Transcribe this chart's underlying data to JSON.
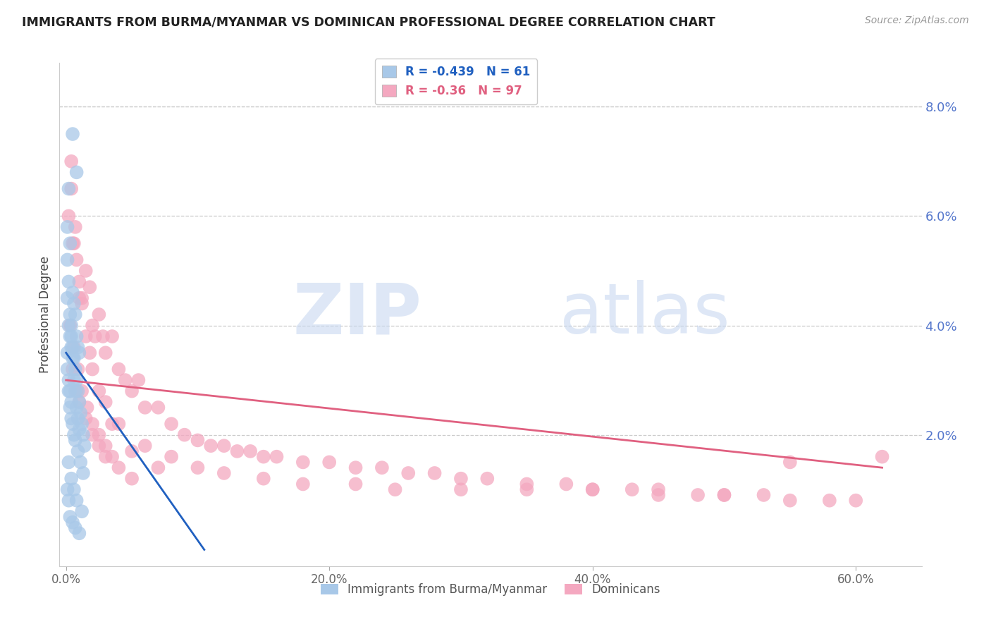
{
  "title": "IMMIGRANTS FROM BURMA/MYANMAR VS DOMINICAN PROFESSIONAL DEGREE CORRELATION CHART",
  "source": "Source: ZipAtlas.com",
  "xlabel_ticks": [
    "0.0%",
    "20.0%",
    "40.0%",
    "60.0%"
  ],
  "xlabel_vals": [
    0.0,
    0.2,
    0.4,
    0.6
  ],
  "ylabel_ticks": [
    "2.0%",
    "4.0%",
    "6.0%",
    "8.0%"
  ],
  "ylabel_vals": [
    0.02,
    0.04,
    0.06,
    0.08
  ],
  "xmin": -0.005,
  "xmax": 0.65,
  "ymin": -0.004,
  "ymax": 0.088,
  "blue_R": -0.439,
  "blue_N": 61,
  "pink_R": -0.36,
  "pink_N": 97,
  "blue_color": "#a8c8e8",
  "pink_color": "#f4a8c0",
  "blue_line_color": "#2060c0",
  "pink_line_color": "#e06080",
  "legend_label_blue": "Immigrants from Burma/Myanmar",
  "legend_label_pink": "Dominicans",
  "ylabel": "Professional Degree",
  "watermark_zip": "ZIP",
  "watermark_atlas": "atlas",
  "blue_scatter_x": [
    0.005,
    0.008,
    0.001,
    0.002,
    0.001,
    0.002,
    0.003,
    0.003,
    0.004,
    0.004,
    0.005,
    0.005,
    0.006,
    0.006,
    0.007,
    0.007,
    0.008,
    0.008,
    0.009,
    0.009,
    0.01,
    0.01,
    0.011,
    0.012,
    0.013,
    0.014,
    0.001,
    0.001,
    0.002,
    0.002,
    0.003,
    0.003,
    0.004,
    0.004,
    0.005,
    0.006,
    0.007,
    0.008,
    0.009,
    0.01,
    0.001,
    0.002,
    0.003,
    0.004,
    0.005,
    0.006,
    0.007,
    0.009,
    0.011,
    0.013,
    0.001,
    0.002,
    0.003,
    0.005,
    0.007,
    0.01,
    0.002,
    0.004,
    0.006,
    0.008,
    0.012
  ],
  "blue_scatter_y": [
    0.075,
    0.068,
    0.058,
    0.065,
    0.052,
    0.048,
    0.055,
    0.042,
    0.04,
    0.038,
    0.036,
    0.046,
    0.044,
    0.034,
    0.042,
    0.032,
    0.038,
    0.03,
    0.036,
    0.028,
    0.035,
    0.026,
    0.024,
    0.022,
    0.02,
    0.018,
    0.045,
    0.035,
    0.04,
    0.03,
    0.038,
    0.028,
    0.036,
    0.026,
    0.034,
    0.03,
    0.028,
    0.025,
    0.023,
    0.021,
    0.032,
    0.028,
    0.025,
    0.023,
    0.022,
    0.02,
    0.019,
    0.017,
    0.015,
    0.013,
    0.01,
    0.008,
    0.005,
    0.004,
    0.003,
    0.002,
    0.015,
    0.012,
    0.01,
    0.008,
    0.006
  ],
  "pink_scatter_x": [
    0.002,
    0.004,
    0.006,
    0.008,
    0.01,
    0.012,
    0.015,
    0.018,
    0.02,
    0.022,
    0.025,
    0.028,
    0.03,
    0.035,
    0.04,
    0.045,
    0.05,
    0.055,
    0.06,
    0.07,
    0.08,
    0.09,
    0.1,
    0.11,
    0.12,
    0.13,
    0.14,
    0.15,
    0.16,
    0.18,
    0.2,
    0.22,
    0.24,
    0.26,
    0.28,
    0.3,
    0.32,
    0.35,
    0.38,
    0.4,
    0.43,
    0.45,
    0.48,
    0.5,
    0.53,
    0.55,
    0.58,
    0.6,
    0.62,
    0.005,
    0.008,
    0.01,
    0.015,
    0.02,
    0.025,
    0.03,
    0.04,
    0.05,
    0.003,
    0.006,
    0.009,
    0.012,
    0.016,
    0.02,
    0.025,
    0.03,
    0.035,
    0.005,
    0.01,
    0.015,
    0.02,
    0.03,
    0.04,
    0.06,
    0.08,
    0.1,
    0.12,
    0.15,
    0.18,
    0.22,
    0.25,
    0.3,
    0.35,
    0.4,
    0.45,
    0.5,
    0.004,
    0.007,
    0.012,
    0.018,
    0.025,
    0.035,
    0.05,
    0.07,
    0.55
  ],
  "pink_scatter_y": [
    0.06,
    0.065,
    0.055,
    0.052,
    0.048,
    0.044,
    0.05,
    0.047,
    0.04,
    0.038,
    0.042,
    0.038,
    0.035,
    0.038,
    0.032,
    0.03,
    0.028,
    0.03,
    0.025,
    0.025,
    0.022,
    0.02,
    0.019,
    0.018,
    0.018,
    0.017,
    0.017,
    0.016,
    0.016,
    0.015,
    0.015,
    0.014,
    0.014,
    0.013,
    0.013,
    0.012,
    0.012,
    0.011,
    0.011,
    0.01,
    0.01,
    0.01,
    0.009,
    0.009,
    0.009,
    0.008,
    0.008,
    0.008,
    0.016,
    0.032,
    0.028,
    0.026,
    0.023,
    0.02,
    0.018,
    0.016,
    0.014,
    0.012,
    0.04,
    0.036,
    0.032,
    0.028,
    0.025,
    0.022,
    0.02,
    0.018,
    0.016,
    0.055,
    0.045,
    0.038,
    0.032,
    0.026,
    0.022,
    0.018,
    0.016,
    0.014,
    0.013,
    0.012,
    0.011,
    0.011,
    0.01,
    0.01,
    0.01,
    0.01,
    0.009,
    0.009,
    0.07,
    0.058,
    0.045,
    0.035,
    0.028,
    0.022,
    0.017,
    0.014,
    0.015
  ]
}
